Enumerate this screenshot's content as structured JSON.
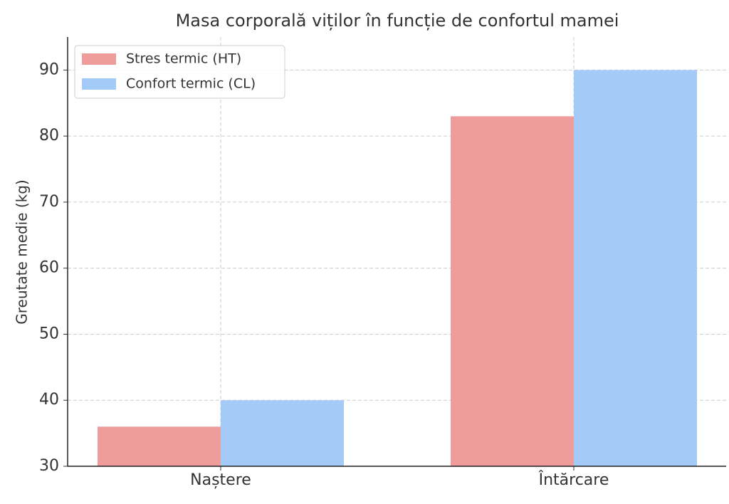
{
  "chart_data": {
    "type": "bar",
    "title": "Masa corporală viților în funcție de confortul mamei",
    "y_label": "Greutate medie (kg)",
    "categories": [
      "Naștere",
      "Întărcare"
    ],
    "series": [
      {
        "name": "Stres termic (HT)",
        "color": "#ef9d9b",
        "values": [
          36,
          83
        ]
      },
      {
        "name": "Confort termic (CL)",
        "color": "#a4cbf7",
        "values": [
          40,
          90
        ]
      }
    ],
    "ylim": [
      30,
      95
    ],
    "yticks": [
      30,
      40,
      50,
      60,
      70,
      80,
      90
    ],
    "grid": true,
    "legend": "upper-left"
  }
}
